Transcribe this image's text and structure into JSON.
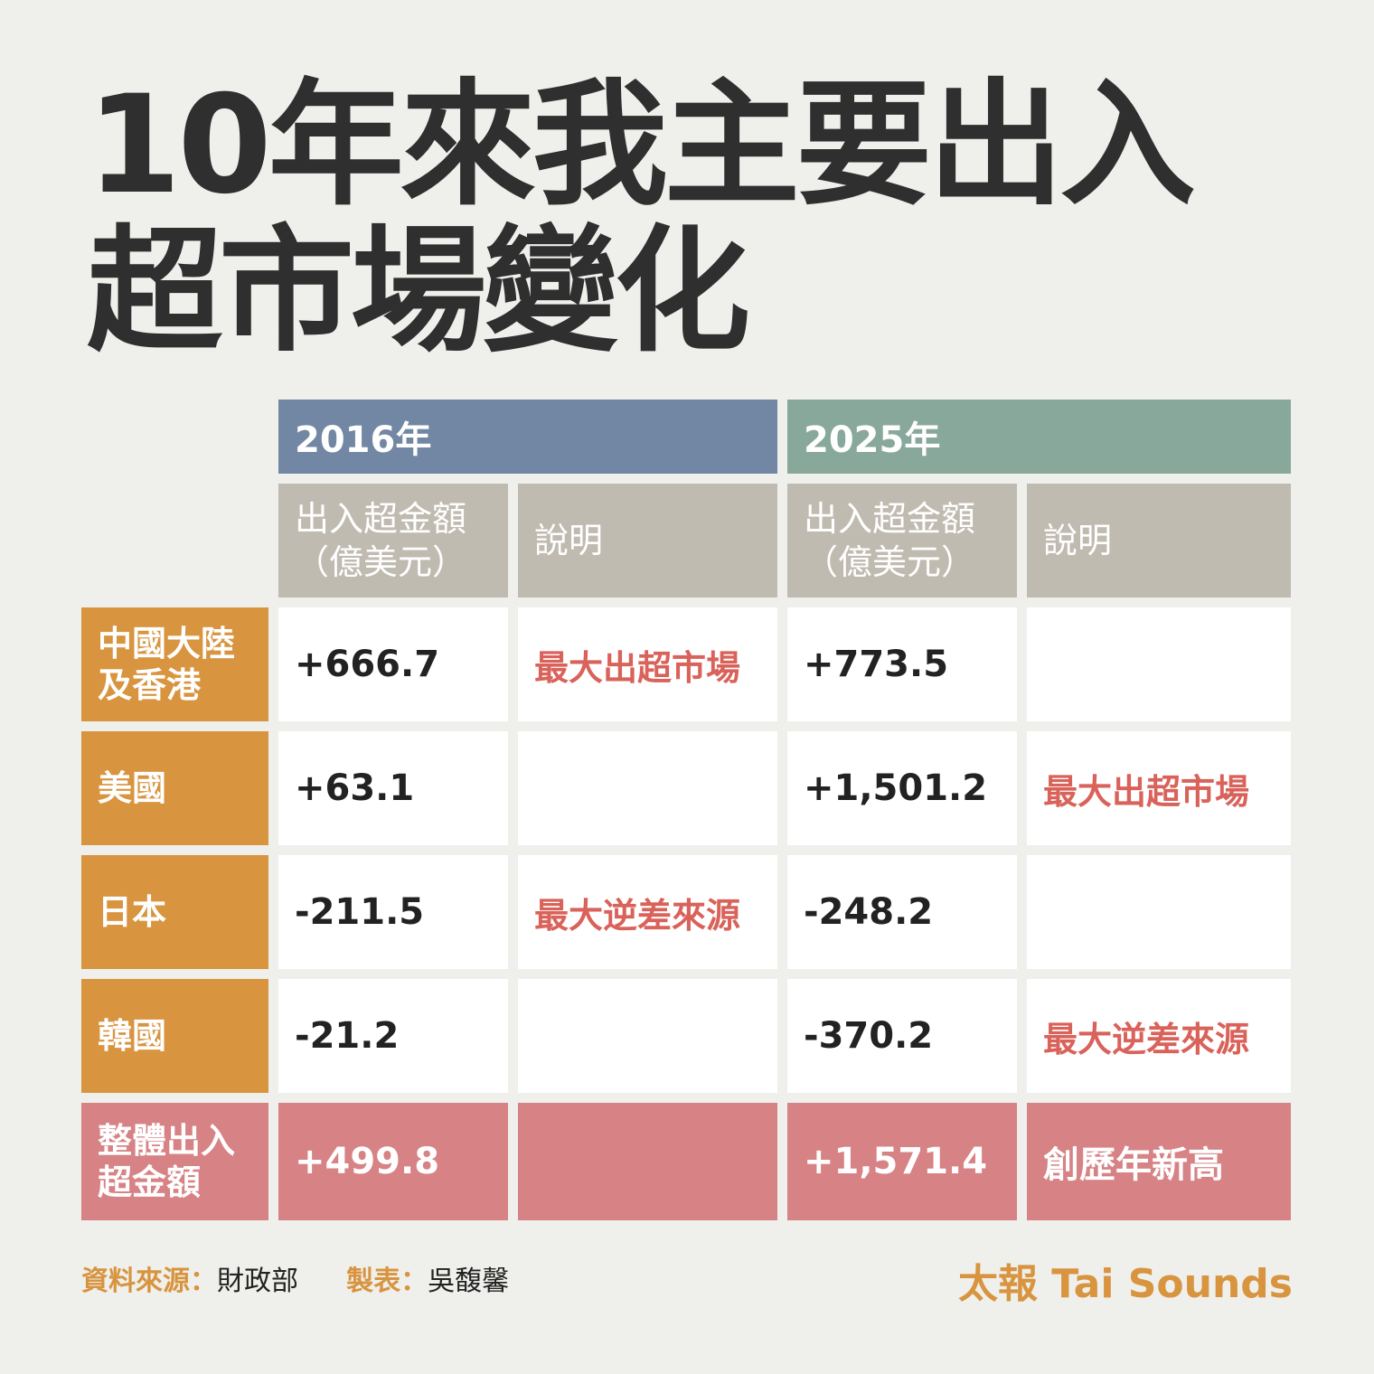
{
  "title": "10年來我主要出入超市場變化",
  "table": {
    "years": [
      "2016年",
      "2025年"
    ],
    "sub_headers": {
      "amount": "出入超金額\n（億美元）",
      "note": "說明"
    },
    "rows": [
      {
        "label": "中國大陸\n及香港",
        "v2016": "+666.7",
        "n2016": "最大出超市場",
        "v2025": "+773.5",
        "n2025": ""
      },
      {
        "label": "美國",
        "v2016": "+63.1",
        "n2016": "",
        "v2025": "+1,501.2",
        "n2025": "最大出超市場"
      },
      {
        "label": "日本",
        "v2016": "-211.5",
        "n2016": "最大逆差來源",
        "v2025": "-248.2",
        "n2025": ""
      },
      {
        "label": "韓國",
        "v2016": "-21.2",
        "n2016": "",
        "v2025": "-370.2",
        "n2025": "最大逆差來源"
      }
    ],
    "total": {
      "label": "整體出入\n超金額",
      "v2016": "+499.8",
      "n2016": "",
      "v2025": "+1,571.4",
      "n2025": "創歷年新高"
    }
  },
  "footer": {
    "source_label": "資料來源：",
    "source_value": "財政部",
    "author_label": "製表：",
    "author_value": "吳馥馨",
    "brand": "太報 Tai Sounds"
  },
  "colors": {
    "bg": "#eff0ec",
    "y2016": "#7287a4",
    "y2025": "#88a89c",
    "subheader": "#c0bbb0",
    "row_label": "#d8943f",
    "total": "#d78285",
    "note_text": "#d9625a"
  }
}
